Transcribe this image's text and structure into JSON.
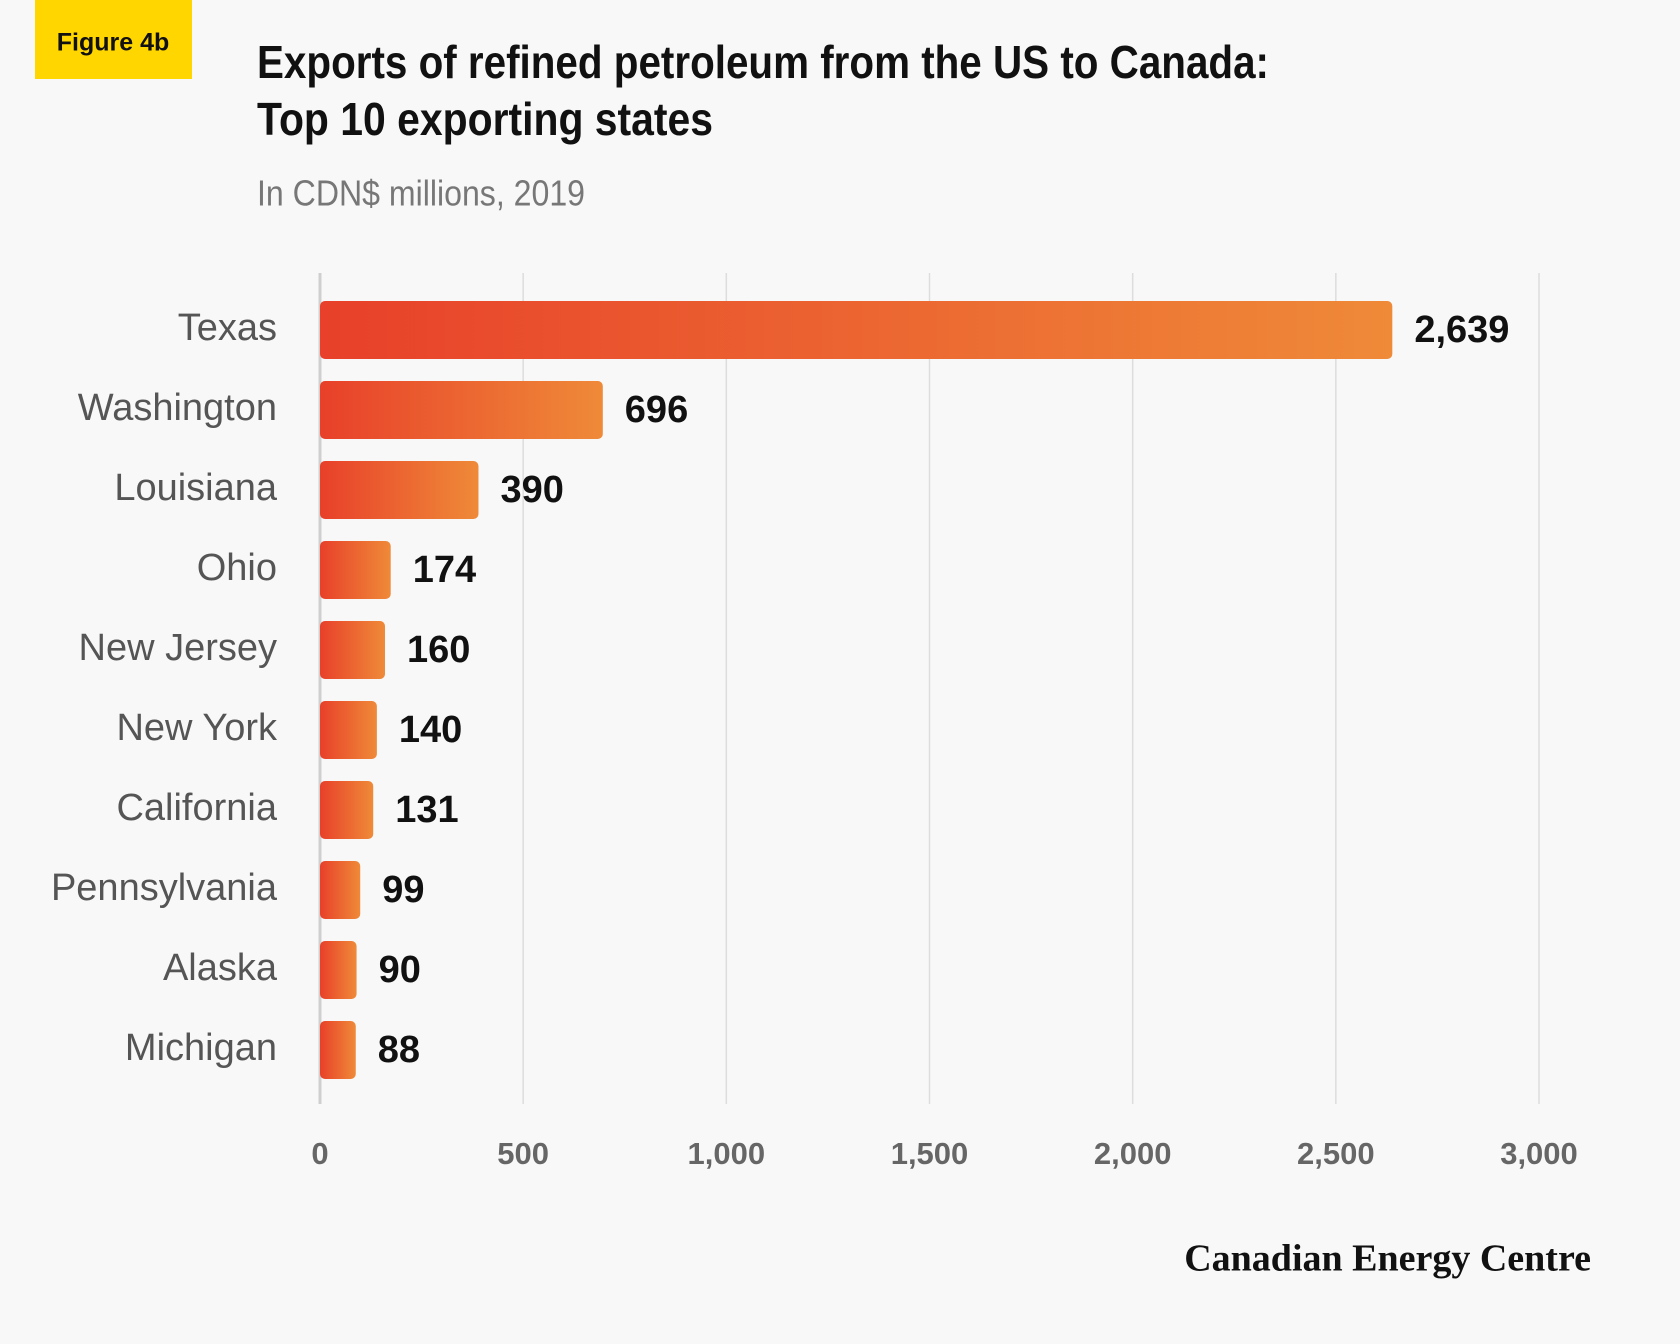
{
  "badge": "Figure 4b",
  "source": "Canadian Energy Centre",
  "chart_data": {
    "type": "barh",
    "title": [
      "Exports of refined petroleum from the US to Canada:",
      "Top 10 exporting states"
    ],
    "subtitle": "In CDN$ millions, 2019",
    "categories": [
      "Texas",
      "Washington",
      "Louisiana",
      "Ohio",
      "New Jersey",
      "New York",
      "California",
      "Pennsylvania",
      "Alaska",
      "Michigan"
    ],
    "values": [
      2639,
      696,
      390,
      174,
      160,
      140,
      131,
      99,
      90,
      88
    ],
    "value_labels": [
      "2,639",
      "696",
      "390",
      "174",
      "160",
      "140",
      "131",
      "99",
      "90",
      "88"
    ],
    "colors": [
      "#e8402a",
      "#ef8a38"
    ],
    "xlim": [
      0,
      3000
    ],
    "xticks": [
      0,
      500,
      {
        "value": 1000,
        "label": "1,000"
      },
      {
        "value": 1500,
        "label": "1,500"
      },
      {
        "value": 2000,
        "label": "2,000"
      },
      {
        "value": 2500,
        "label": "2,500"
      },
      {
        "value": 3000,
        "label": "3,000"
      }
    ],
    "grid": true
  }
}
